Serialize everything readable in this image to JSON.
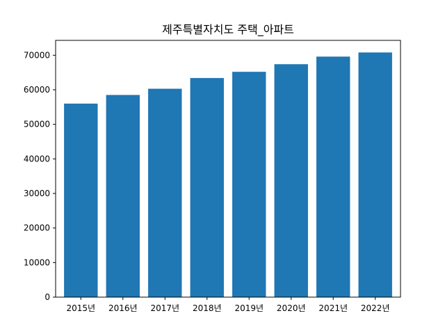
{
  "chart_data": {
    "type": "bar",
    "title": "제주특별자치도 주택_아파트",
    "xlabel": "",
    "ylabel": "",
    "categories": [
      "2015년",
      "2016년",
      "2017년",
      "2018년",
      "2019년",
      "2020년",
      "2021년",
      "2022년"
    ],
    "values": [
      56000,
      58500,
      60300,
      63400,
      65200,
      67400,
      69600,
      70800
    ],
    "ylim": [
      0,
      74300
    ],
    "yticks": [
      0,
      10000,
      20000,
      30000,
      40000,
      50000,
      60000,
      70000
    ],
    "bar_color": "#1f77b4",
    "grid": false,
    "legend": "none"
  }
}
